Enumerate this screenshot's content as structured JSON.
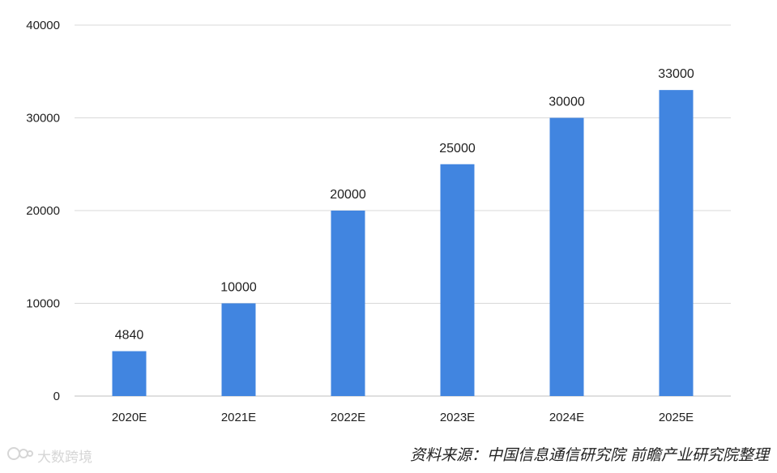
{
  "chart_data": {
    "type": "bar",
    "categories": [
      "2020E",
      "2021E",
      "2022E",
      "2023E",
      "2024E",
      "2025E"
    ],
    "values": [
      4840,
      10000,
      20000,
      25000,
      30000,
      33000
    ],
    "data_labels": [
      "4840",
      "10000",
      "20000",
      "25000",
      "30000",
      "33000"
    ],
    "yticks": [
      0,
      10000,
      20000,
      30000,
      40000
    ],
    "ylim": [
      0,
      40000
    ],
    "grid": true,
    "legend": "none",
    "bar_color": "#4185E0"
  },
  "source_note": "资料来源：中国信息通信研究院  前瞻产业研究院整理",
  "watermark": {
    "text": "大数跨境",
    "icon": "watermark-logo-icon"
  },
  "colors": {
    "grid": "#d9d9d9",
    "axis": "#bfbfbf",
    "text": "#1f1f1f"
  }
}
